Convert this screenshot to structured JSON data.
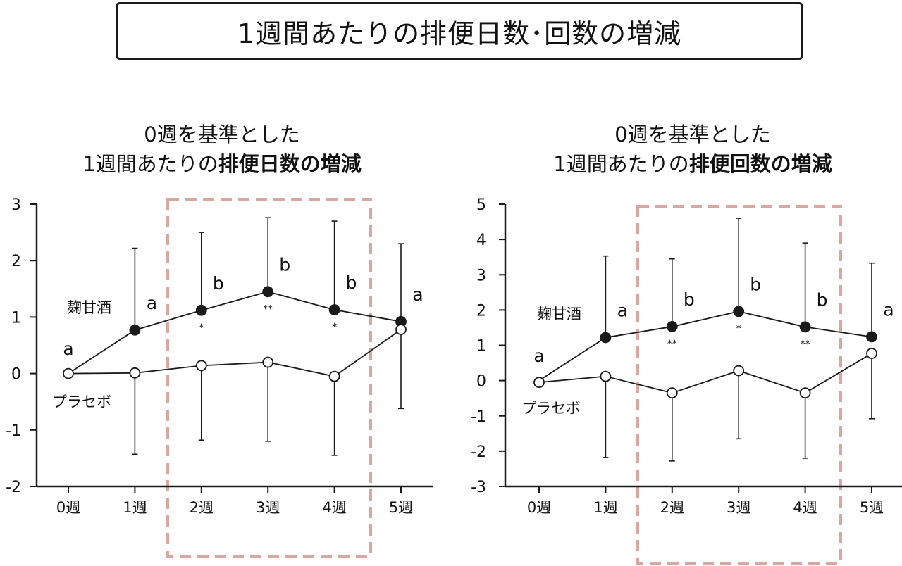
{
  "main_title": "1週間あたりの排便日数･回数の増減",
  "colors": {
    "highlight_box": "#d8a8a0",
    "line": "#1a1a1a",
    "open_marker": "#ffffff",
    "filled_marker": "#1a1a1a"
  },
  "chart_data": [
    {
      "type": "line",
      "title_line1": "0週を基準とした",
      "title_line2_plain": "1週間あたりの",
      "title_line2_bold": "排便日数の増減",
      "categories": [
        "0週",
        "1週",
        "2週",
        "3週",
        "4週",
        "5週"
      ],
      "ylim": [
        -2,
        3
      ],
      "yticks": [
        3,
        2,
        1,
        0,
        -1,
        -2
      ],
      "ytick_labels": [
        "3",
        "2",
        "1",
        "0",
        "-1",
        "-2"
      ],
      "highlight_categories": [
        "2週",
        "3週",
        "4週"
      ],
      "series": [
        {
          "name": "麹甘酒",
          "marker": "filled",
          "values": [
            0,
            0.77,
            1.12,
            1.45,
            1.13,
            0.92
          ],
          "err_upper": [
            null,
            2.22,
            2.5,
            2.76,
            2.7,
            2.3
          ],
          "err_lower": [
            null,
            null,
            null,
            null,
            null,
            null
          ],
          "group_letters": [
            "a",
            "a",
            "b",
            "b",
            "b",
            "a"
          ],
          "significance": [
            "",
            "",
            "*",
            "**",
            "*",
            ""
          ]
        },
        {
          "name": "プラセボ",
          "marker": "open",
          "values": [
            0,
            0.01,
            0.14,
            0.2,
            -0.05,
            0.78
          ],
          "err_upper": [
            null,
            null,
            null,
            null,
            null,
            null
          ],
          "err_lower": [
            null,
            -1.43,
            -1.18,
            -1.2,
            -1.45,
            -0.62
          ]
        }
      ],
      "group_letter_first": "a"
    },
    {
      "type": "line",
      "title_line1": "0週を基準とした",
      "title_line2_plain": "1週間あたりの",
      "title_line2_bold": "排便回数の増減",
      "categories": [
        "0週",
        "1週",
        "2週",
        "3週",
        "4週",
        "5週"
      ],
      "ylim": [
        -3,
        5
      ],
      "yticks": [
        5,
        4,
        3,
        2,
        1,
        0,
        -1,
        -2,
        -3
      ],
      "ytick_labels": [
        "5",
        "4",
        "3",
        "2",
        "1",
        "0",
        "-1",
        "-2",
        "-3"
      ],
      "highlight_categories": [
        "2週",
        "3週",
        "4週"
      ],
      "series": [
        {
          "name": "麹甘酒",
          "marker": "filled",
          "values": [
            0,
            1.22,
            1.53,
            1.96,
            1.52,
            1.24
          ],
          "err_upper": [
            null,
            3.53,
            3.45,
            4.6,
            3.9,
            3.33
          ],
          "err_lower": [
            null,
            null,
            null,
            null,
            null,
            null
          ],
          "group_letters": [
            "a",
            "a",
            "b",
            "b",
            "b",
            "a"
          ],
          "significance": [
            "",
            "",
            "**",
            "*",
            "**",
            ""
          ]
        },
        {
          "name": "プラセボ",
          "marker": "open",
          "values": [
            -0.05,
            0.12,
            -0.35,
            0.28,
            -0.35,
            0.77
          ],
          "err_upper": [
            null,
            null,
            null,
            null,
            null,
            null
          ],
          "err_lower": [
            null,
            -2.18,
            -2.28,
            -1.65,
            -2.2,
            -1.08
          ]
        }
      ]
    }
  ]
}
